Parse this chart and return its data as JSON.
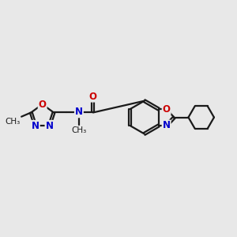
{
  "bg_color": "#e8e8e8",
  "bond_color": "#1a1a1a",
  "N_color": "#0000cc",
  "O_color": "#cc0000",
  "line_width": 1.6,
  "font_size": 8.5,
  "figsize": [
    3.0,
    3.0
  ],
  "dpi": 100,
  "xlim": [
    0,
    10
  ],
  "ylim": [
    1,
    9
  ]
}
